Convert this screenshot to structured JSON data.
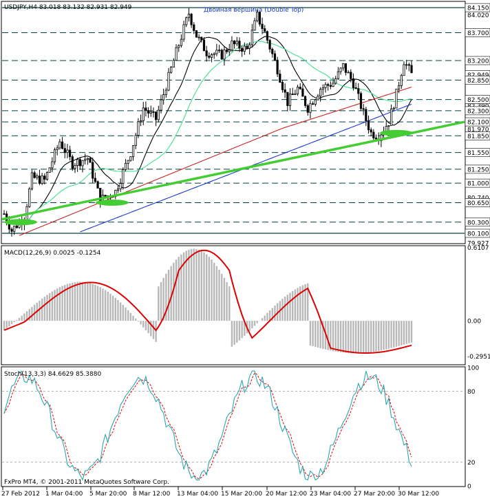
{
  "header": {
    "symbol_info": "USDJPY,H4  83.018 83.132 82.931 82.949",
    "annotation": "Двойная вершина (Double Top)"
  },
  "copyright": "FxPro MT4, © 2001-2011 MetaQuotes Software Corp.",
  "colors": {
    "background": "#ffffff",
    "candle": "#000000",
    "level_line": "#004040",
    "level_label_bg": "#ffffff",
    "ma_fast": "#000000",
    "ma_mid": "#40e090",
    "ma_slow": "#cc2222",
    "ma_long": "#1a3bd0",
    "trendline": "#44cc33",
    "macd_hist": "#b8b8b8",
    "macd_signal": "#dd0000",
    "stoch_main": "#2ba6b0",
    "stoch_signal": "#dd0000"
  },
  "chart_data": [
    {
      "type": "candlestick",
      "name": "USDJPY,H4",
      "ylim": [
        79.927,
        84.25
      ],
      "price_axis_ticks": [
        "84.150",
        "84.020",
        "83.700",
        "83.200",
        "82.949",
        "82.850",
        "82.500",
        "82.390",
        "82.300",
        "82.100",
        "81.970",
        "81.850",
        "81.550",
        "81.250",
        "81.000",
        "80.740",
        "80.650",
        "80.300",
        "80.100",
        "79.927"
      ],
      "current_price": "82.949",
      "horizontal_levels": [
        84.15,
        83.7,
        83.2,
        82.85,
        82.5,
        82.3,
        82.1,
        81.85,
        81.55,
        81.25,
        81.0,
        80.65,
        80.3,
        80.1
      ],
      "annotation": "Двойная вершина (Double Top)",
      "trendline": {
        "from_price": 80.35,
        "to_price": 82.1
      },
      "support_highlights": [
        "bottom 1",
        "bottom 2",
        "bottom 3"
      ]
    },
    {
      "type": "histogram",
      "name": "MACD(12,26,9)",
      "header": "MACD(12,26,9) 0.0025 -0.1254",
      "ticks": [
        "0.6107",
        "0.00",
        "-0.2951"
      ],
      "ylim": [
        -0.36,
        0.62
      ]
    },
    {
      "type": "line",
      "name": "Stoch(13,3,3)",
      "header": "Stoch(13,3,3) 84.6629 85.3880",
      "ticks": [
        "100",
        "80",
        "20",
        "0"
      ],
      "ylim": [
        0,
        100
      ]
    }
  ],
  "time_axis": [
    "27 Feb 2012",
    "1 Mar 04:00",
    "5 Mar 20:00",
    "8 Mar 12:00",
    "13 Mar 04:00",
    "15 Mar 20:00",
    "20 Mar 12:00",
    "23 Mar 04:00",
    "27 Mar 20:00",
    "30 Mar 12:00"
  ]
}
